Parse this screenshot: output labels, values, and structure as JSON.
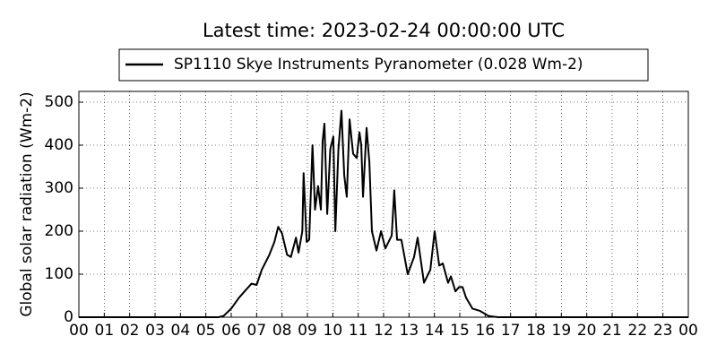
{
  "chart_data": {
    "type": "line",
    "title": "Latest time: 2023-02-24 00:00:00 UTC",
    "y_label": "Global solar radiation (Wm-2)",
    "x": [
      0,
      5.5,
      5.7,
      6.0,
      6.3,
      6.6,
      6.8,
      7.0,
      7.2,
      7.5,
      7.7,
      7.85,
      8.0,
      8.2,
      8.35,
      8.55,
      8.65,
      8.8,
      8.85,
      8.97,
      9.07,
      9.2,
      9.3,
      9.42,
      9.53,
      9.6,
      9.67,
      9.78,
      9.9,
      10.02,
      10.1,
      10.22,
      10.34,
      10.45,
      10.55,
      10.66,
      10.8,
      10.94,
      11.05,
      11.12,
      11.19,
      11.33,
      11.44,
      11.54,
      11.72,
      11.9,
      12.07,
      12.32,
      12.42,
      12.53,
      12.7,
      12.95,
      13.2,
      13.34,
      13.59,
      13.84,
      14.01,
      14.19,
      14.33,
      14.54,
      14.65,
      14.83,
      14.97,
      15.11,
      15.25,
      15.5,
      15.78,
      16.13,
      16.5,
      24
    ],
    "series": [
      {
        "name": "SP1110 Skye Instruments Pyranometer (0.028 Wm-2)",
        "color": "#000000",
        "values": [
          0,
          0,
          3,
          20,
          45,
          65,
          78,
          75,
          110,
          145,
          175,
          210,
          195,
          145,
          140,
          185,
          150,
          200,
          335,
          175,
          180,
          400,
          250,
          305,
          250,
          410,
          450,
          240,
          390,
          420,
          200,
          390,
          480,
          330,
          280,
          460,
          380,
          370,
          430,
          400,
          280,
          440,
          360,
          200,
          155,
          200,
          160,
          190,
          295,
          180,
          180,
          100,
          140,
          185,
          80,
          110,
          200,
          120,
          125,
          80,
          95,
          60,
          70,
          70,
          45,
          20,
          15,
          3,
          0,
          0
        ]
      }
    ],
    "xlim": [
      0,
      24
    ],
    "xticks": [
      {
        "value": 0,
        "label": "00"
      },
      {
        "value": 1,
        "label": "01"
      },
      {
        "value": 2,
        "label": "02"
      },
      {
        "value": 3,
        "label": "03"
      },
      {
        "value": 4,
        "label": "04"
      },
      {
        "value": 5,
        "label": "05"
      },
      {
        "value": 6,
        "label": "06"
      },
      {
        "value": 7,
        "label": "07"
      },
      {
        "value": 8,
        "label": "08"
      },
      {
        "value": 9,
        "label": "09"
      },
      {
        "value": 10,
        "label": "10"
      },
      {
        "value": 11,
        "label": "11"
      },
      {
        "value": 12,
        "label": "12"
      },
      {
        "value": 13,
        "label": "13"
      },
      {
        "value": 14,
        "label": "14"
      },
      {
        "value": 15,
        "label": "15"
      },
      {
        "value": 16,
        "label": "16"
      },
      {
        "value": 17,
        "label": "17"
      },
      {
        "value": 18,
        "label": "18"
      },
      {
        "value": 19,
        "label": "19"
      },
      {
        "value": 20,
        "label": "20"
      },
      {
        "value": 21,
        "label": "21"
      },
      {
        "value": 22,
        "label": "22"
      },
      {
        "value": 23,
        "label": "23"
      },
      {
        "value": 24,
        "label": "00"
      }
    ],
    "ylim": [
      0,
      525
    ],
    "yticks": [
      0,
      100,
      200,
      300,
      400,
      500
    ],
    "grid": true
  }
}
